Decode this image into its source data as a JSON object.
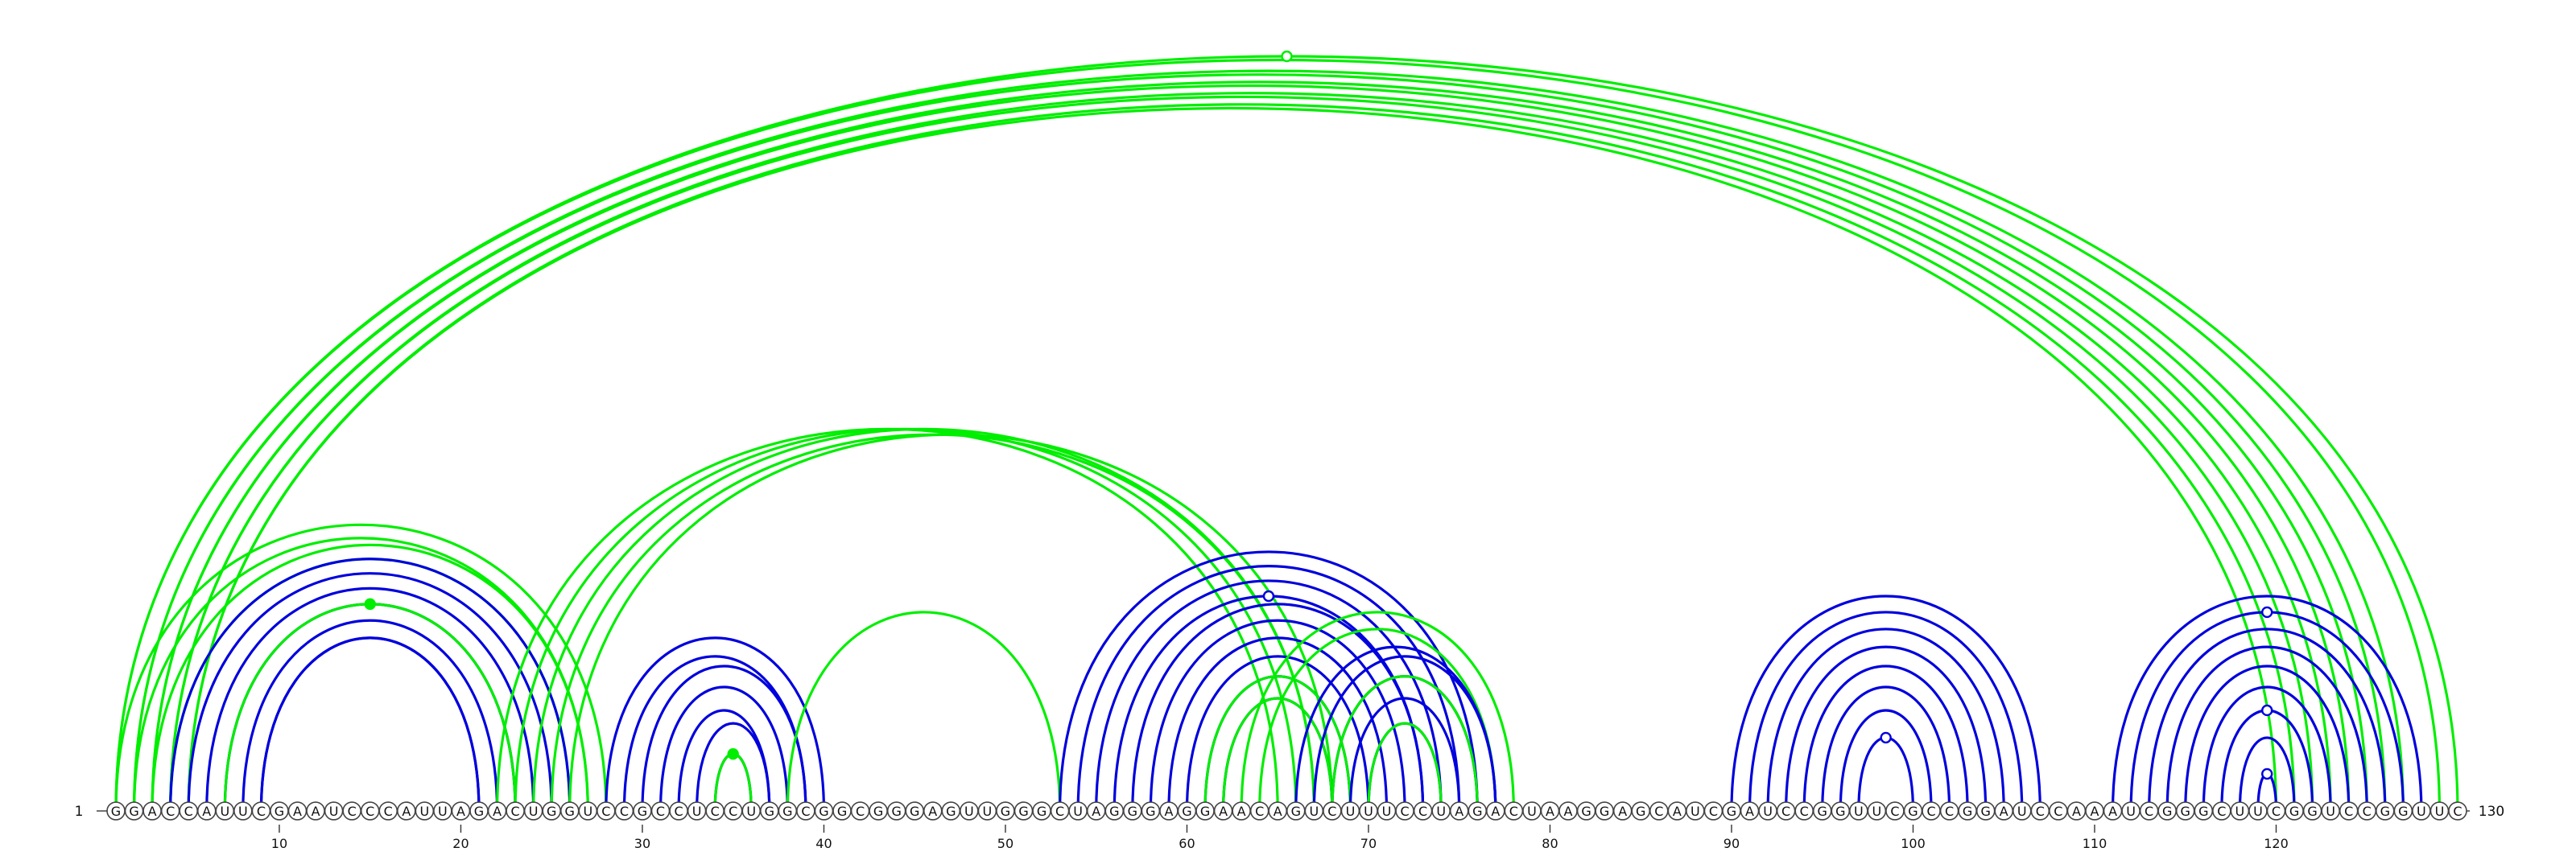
{
  "sequence": "GGACCAUUCGAAUCCCAUUAGACUGGUCCGCCUCCUGGCGGCGGGAGUUGGGCUAGGGAGGAACAGUCUUUCCUAGACUAAGGAGCAUCGAUCCGGUUCGCCGGAUCCAAAUCGGGCUUCGGUCCGGUUC",
  "start_label": "1",
  "end_label": "130",
  "tick_labels": [
    "10",
    "20",
    "30",
    "40",
    "50",
    "60",
    "70",
    "80",
    "90",
    "100",
    "110",
    "120"
  ],
  "colors": {
    "upper_arcs": "#00ee00",
    "lower_arcs": "#0000dd",
    "lower_arcs_alt": "#00ee00"
  },
  "markers": [
    {
      "color": "green",
      "filled": false,
      "pair_i": 1,
      "pair_j": 130
    },
    {
      "color": "green",
      "filled": true,
      "pair_i": 7,
      "pair_j": 23
    },
    {
      "color": "green",
      "filled": true,
      "pair_i": 34,
      "pair_j": 36
    },
    {
      "color": "blue",
      "filled": false,
      "pair_i": 56,
      "pair_j": 73
    },
    {
      "color": "blue",
      "filled": false,
      "pair_i": 97,
      "pair_j": 100
    },
    {
      "color": "blue",
      "filled": false,
      "pair_i": 112,
      "pair_j": 127
    },
    {
      "color": "blue",
      "filled": false,
      "pair_i": 117,
      "pair_j": 122
    },
    {
      "color": "blue",
      "filled": false,
      "pair_i": 119,
      "pair_j": 120
    }
  ],
  "arc_groups": [
    {
      "color": "green",
      "pairs": [
        [
          1,
          130
        ],
        [
          1,
          129
        ],
        [
          2,
          127
        ],
        [
          2,
          126
        ],
        [
          3,
          125
        ],
        [
          3,
          124
        ],
        [
          4,
          123
        ],
        [
          4,
          122
        ],
        [
          5,
          121
        ],
        [
          5,
          120
        ]
      ]
    },
    {
      "color": "green",
      "pairs": [
        [
          1,
          28
        ],
        [
          2,
          27
        ],
        [
          3,
          27
        ],
        [
          4,
          26
        ]
      ]
    },
    {
      "color": "blue",
      "pairs": [
        [
          4,
          26
        ],
        [
          5,
          25
        ],
        [
          6,
          24
        ],
        [
          7,
          23
        ],
        [
          9,
          21
        ]
      ]
    },
    {
      "color": "green",
      "pairs": [
        [
          7,
          23
        ]
      ]
    },
    {
      "color": "blue",
      "pairs": [
        [
          8,
          22
        ],
        [
          9,
          21
        ]
      ]
    },
    {
      "color": "green",
      "pairs": [
        [
          22,
          65
        ],
        [
          23,
          66
        ],
        [
          24,
          67
        ],
        [
          25,
          67
        ],
        [
          26,
          68
        ]
      ]
    },
    {
      "color": "blue",
      "pairs": [
        [
          28,
          40
        ],
        [
          29,
          39
        ],
        [
          30,
          39
        ],
        [
          31,
          38
        ],
        [
          32,
          37
        ],
        [
          33,
          37
        ],
        [
          34,
          36
        ]
      ]
    },
    {
      "color": "green",
      "pairs": [
        [
          34,
          36
        ]
      ]
    },
    {
      "color": "green",
      "pairs": [
        [
          38,
          53
        ]
      ]
    },
    {
      "color": "blue",
      "pairs": [
        [
          53,
          76
        ],
        [
          54,
          75
        ],
        [
          55,
          74
        ],
        [
          56,
          73
        ],
        [
          57,
          73
        ],
        [
          58,
          72
        ],
        [
          59,
          71
        ],
        [
          60,
          70
        ],
        [
          61,
          69
        ],
        [
          62,
          68
        ]
      ]
    },
    {
      "color": "green",
      "pairs": [
        [
          61,
          69
        ],
        [
          62,
          68
        ],
        [
          63,
          78
        ],
        [
          64,
          77
        ]
      ]
    },
    {
      "color": "blue",
      "pairs": [
        [
          66,
          77
        ],
        [
          67,
          77
        ],
        [
          68,
          76
        ],
        [
          69,
          75
        ],
        [
          70,
          74
        ]
      ]
    },
    {
      "color": "green",
      "pairs": [
        [
          68,
          76
        ],
        [
          70,
          74
        ]
      ]
    },
    {
      "color": "blue",
      "pairs": [
        [
          90,
          107
        ],
        [
          91,
          106
        ],
        [
          92,
          105
        ],
        [
          93,
          104
        ],
        [
          94,
          103
        ],
        [
          95,
          102
        ],
        [
          96,
          101
        ],
        [
          97,
          100
        ]
      ]
    },
    {
      "color": "blue",
      "pairs": [
        [
          111,
          128
        ],
        [
          112,
          127
        ],
        [
          113,
          126
        ],
        [
          114,
          125
        ],
        [
          115,
          124
        ],
        [
          116,
          123
        ],
        [
          117,
          122
        ],
        [
          118,
          121
        ],
        [
          119,
          120
        ]
      ]
    }
  ]
}
